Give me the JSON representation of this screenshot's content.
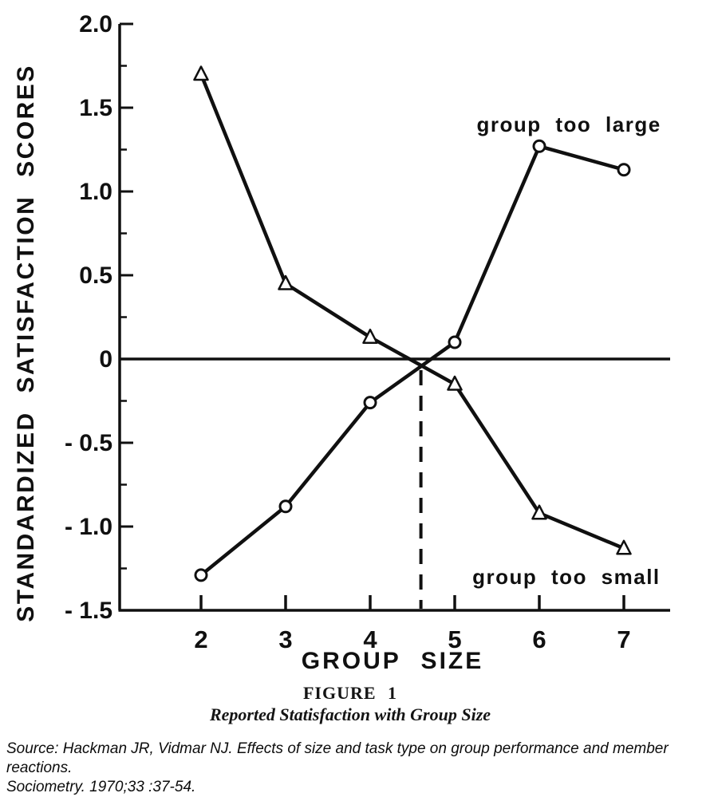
{
  "chart_data": {
    "type": "line",
    "title": "FIGURE 1",
    "subtitle": "Reported Statisfaction with Group Size",
    "xlabel": "GROUP SIZE",
    "ylabel": "STANDARDIZED SATISFACTION SCORES",
    "x": [
      2,
      3,
      4,
      5,
      6,
      7
    ],
    "xlim": [
      1.04,
      7.55
    ],
    "ylim": [
      -1.5,
      2.0
    ],
    "x_ticks": [
      2,
      3,
      4,
      5,
      6,
      7
    ],
    "y_ticks": [
      {
        "v": 2.0,
        "label": "2.0"
      },
      {
        "v": 1.5,
        "label": "1.5"
      },
      {
        "v": 1.0,
        "label": "1.0"
      },
      {
        "v": 0.5,
        "label": "0.5"
      },
      {
        "v": 0,
        "label": "0"
      },
      {
        "v": -0.5,
        "label": "- 0.5"
      },
      {
        "v": -1.0,
        "label": "- 1.0"
      },
      {
        "v": -1.5,
        "label": "- 1.5"
      }
    ],
    "y_minor_ticks": [
      1.75,
      1.25,
      0.75,
      0.25,
      -0.25,
      -0.75,
      -1.25
    ],
    "grid": false,
    "zero_line": true,
    "dashed_vline_x": 4.6,
    "ink_color": "#101010",
    "series": [
      {
        "name": "group too large",
        "marker": "circle",
        "values": [
          -1.29,
          -0.88,
          -0.26,
          0.1,
          1.27,
          1.13
        ],
        "label_pos": {
          "x": 6.35,
          "y": 1.4
        }
      },
      {
        "name": "group too small",
        "marker": "triangle",
        "values": [
          1.7,
          0.45,
          0.13,
          -0.15,
          -0.92,
          -1.13
        ],
        "label_pos": {
          "x": 6.32,
          "y": -1.3
        }
      }
    ]
  },
  "caption": {
    "figure_label": "FIGURE 1",
    "figure_title": "Reported Statisfaction with Group Size"
  },
  "source": {
    "line1": "Source: Hackman JR, Vidmar NJ. Effects of size and task type on group performance and member reactions.",
    "line2": "Sociometry. 1970;33 :37-54."
  }
}
